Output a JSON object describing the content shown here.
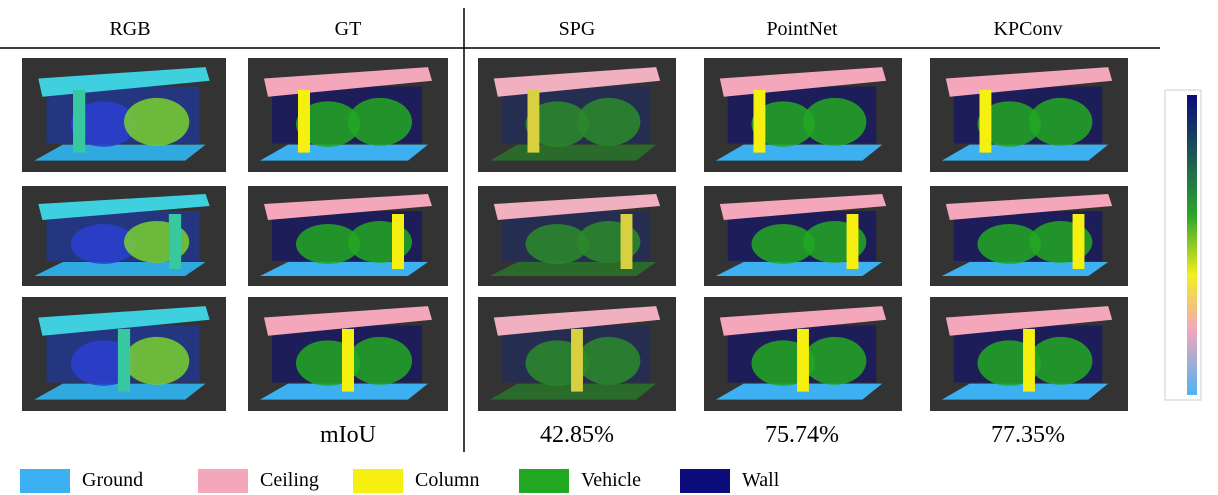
{
  "columns": [
    "RGB",
    "GT",
    "SPG",
    "PointNet",
    "KPConv"
  ],
  "metric": {
    "label": "mIoU",
    "values": [
      "42.85%",
      "75.74%",
      "77.35%"
    ]
  },
  "legend": [
    "Ground",
    "Ceiling",
    "Column",
    "Vehicle",
    "Wall"
  ]
}
